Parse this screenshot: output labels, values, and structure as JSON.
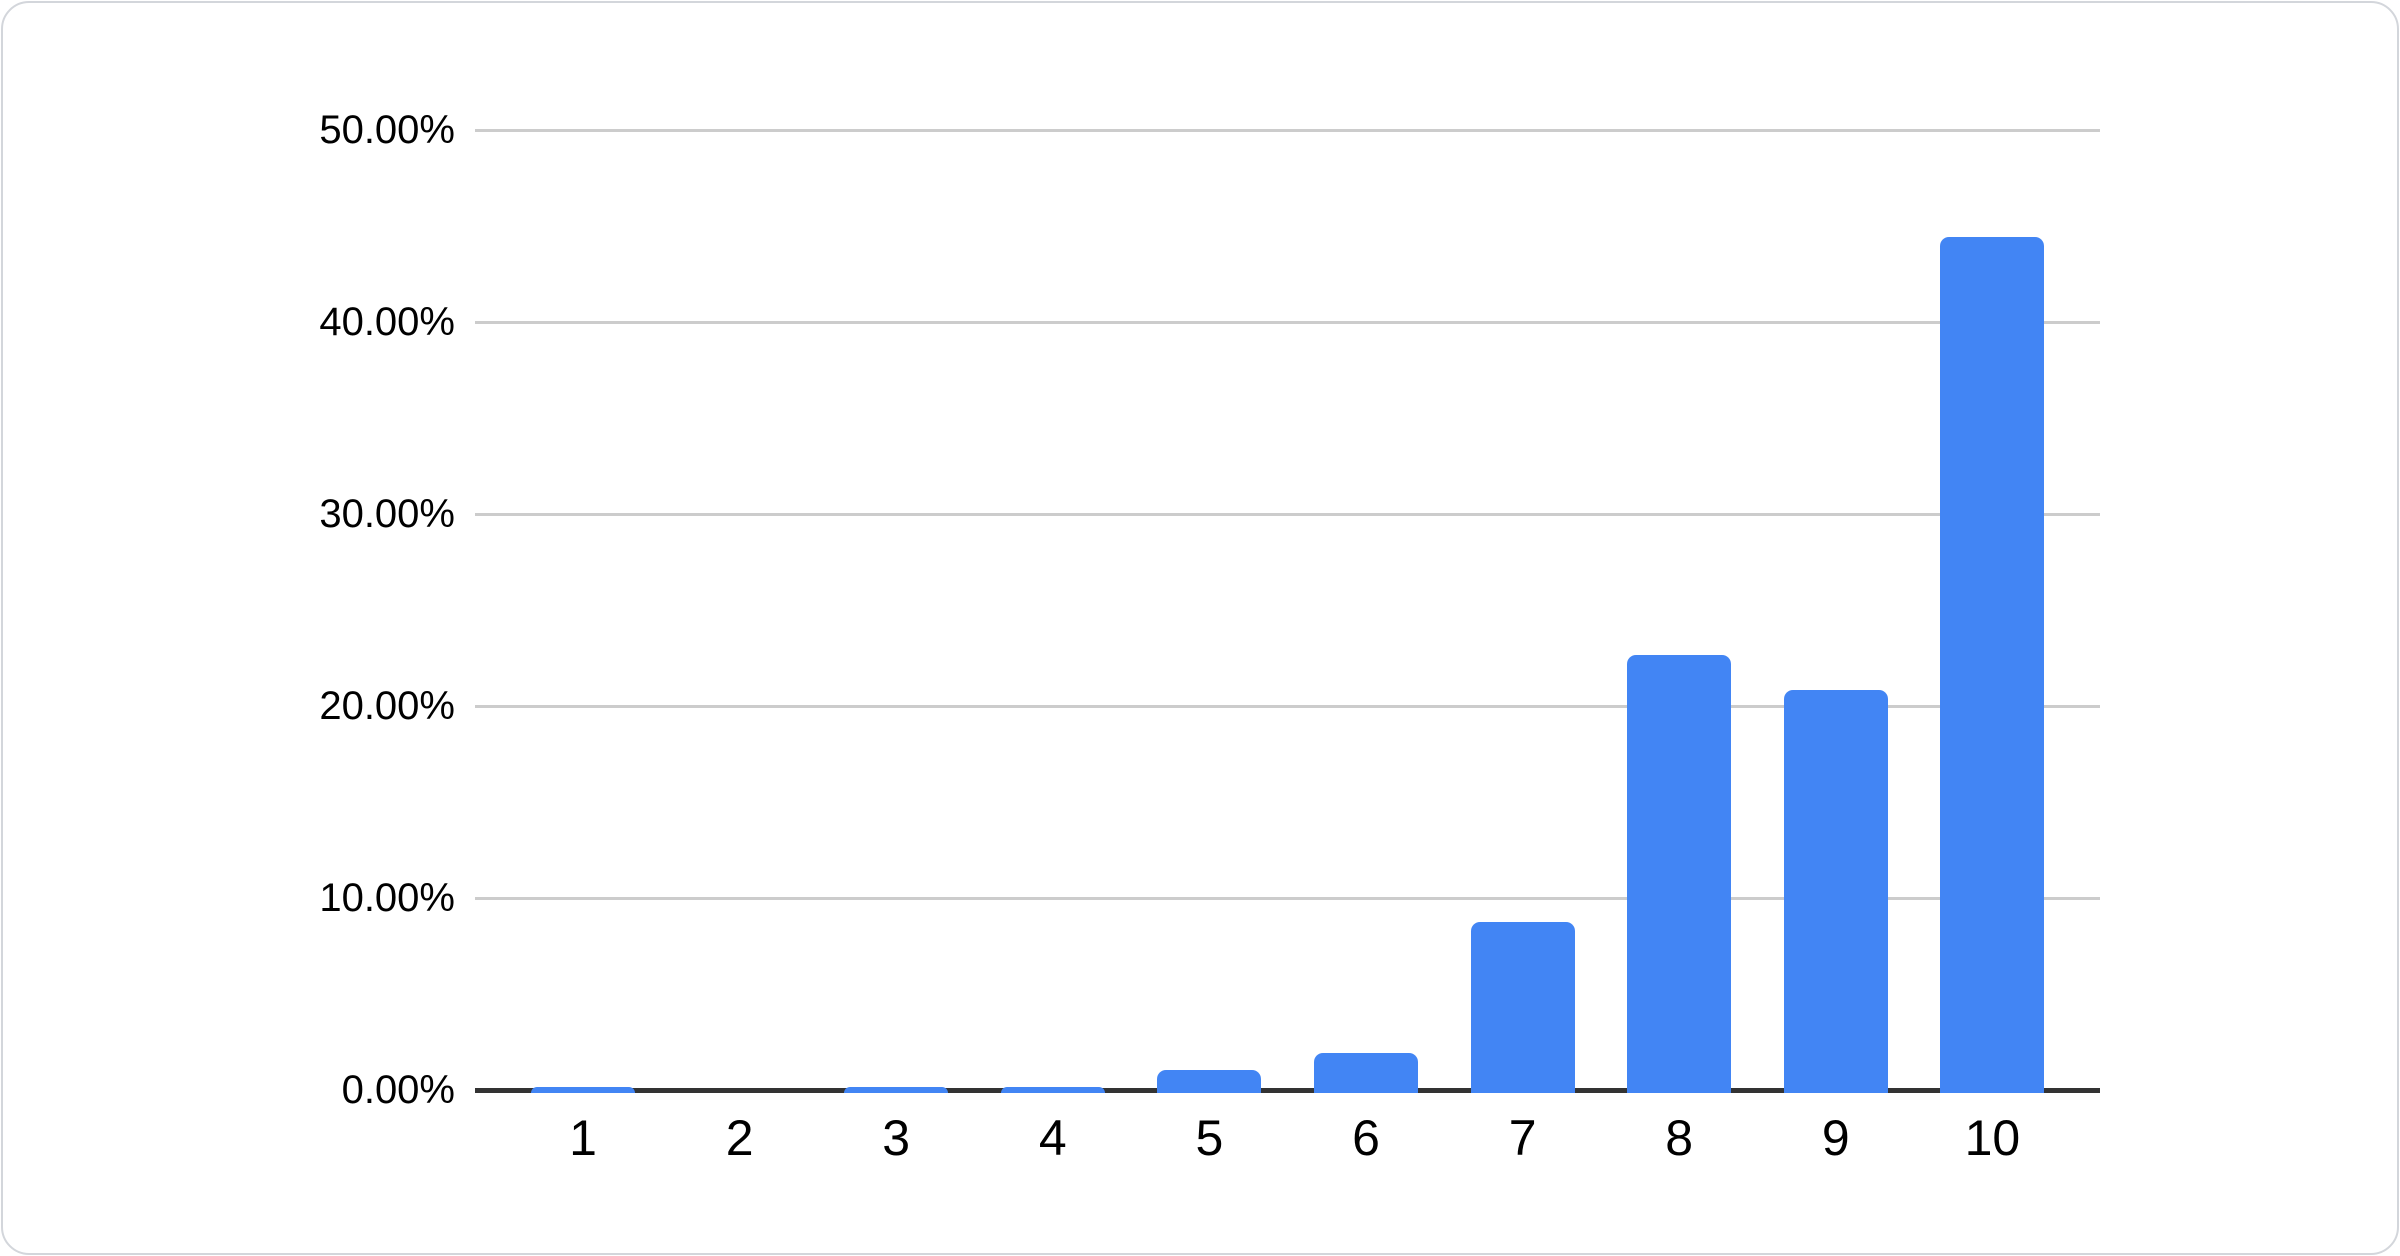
{
  "chart_data": {
    "type": "bar",
    "title": "",
    "xlabel": "",
    "ylabel": "",
    "categories": [
      "1",
      "2",
      "3",
      "4",
      "5",
      "6",
      "7",
      "8",
      "9",
      "10"
    ],
    "values": [
      0.1,
      0,
      0.1,
      0.1,
      1.0,
      1.9,
      8.7,
      22.6,
      20.8,
      44.4
    ],
    "ylim": [
      0,
      50
    ],
    "ytick_labels": [
      "0.00%",
      "10.00%",
      "20.00%",
      "30.00%",
      "40.00%",
      "50.00%"
    ],
    "grid": true,
    "legend": "none"
  },
  "colors": {
    "bar": "#4285f4",
    "gridline": "#cccccc",
    "axis": "#333333",
    "label_text": "#000000",
    "card_border": "#d3d6db",
    "card_background": "#ffffff"
  }
}
